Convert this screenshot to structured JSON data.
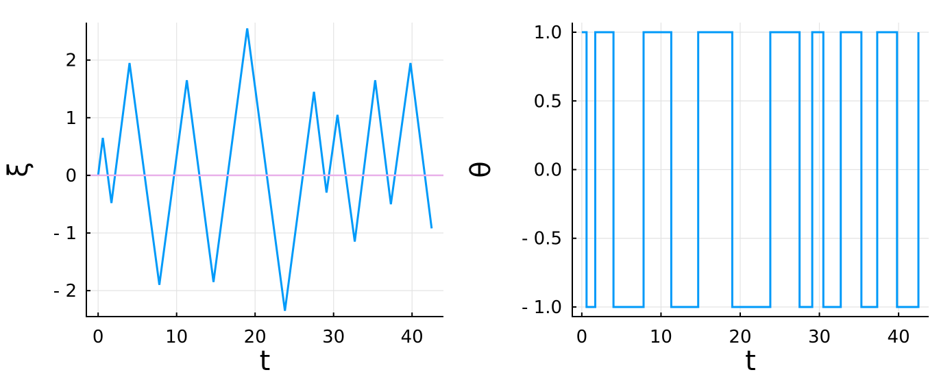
{
  "chart_data": [
    {
      "type": "line",
      "xlabel": "t",
      "ylabel": "ξ",
      "xlim": [
        -1.5,
        44
      ],
      "ylim": [
        -2.45,
        2.65
      ],
      "x_ticks": [
        0,
        10,
        20,
        30,
        40
      ],
      "x_tick_labels": [
        "0",
        "10",
        "20",
        "30",
        "40"
      ],
      "y_ticks": [
        -2,
        -1,
        0,
        1,
        2
      ],
      "y_tick_labels": [
        "- 2",
        "- 1",
        "0",
        "1",
        "2"
      ],
      "grid": true,
      "legend": "none",
      "series": [
        {
          "color": "#009af9",
          "style": "line",
          "x": [
            0,
            0.6,
            1.7,
            4,
            7.8,
            11.3,
            14.7,
            19,
            23.8,
            27.5,
            29.1,
            30.5,
            32.7,
            35.3,
            37.3,
            39.8,
            42.5
          ],
          "y": [
            0,
            0.65,
            -0.48,
            1.95,
            -1.9,
            1.65,
            -1.85,
            2.55,
            -2.35,
            1.45,
            -0.3,
            1.05,
            -1.15,
            1.65,
            -0.5,
            1.95,
            -0.92
          ]
        },
        {
          "color": "#e9b0ea",
          "style": "hline",
          "y": 0
        }
      ]
    },
    {
      "type": "line",
      "xlabel": "t",
      "ylabel": "θ",
      "xlim": [
        -1.2,
        43.8
      ],
      "ylim": [
        -1.07,
        1.07
      ],
      "x_ticks": [
        0,
        10,
        20,
        30,
        40
      ],
      "x_tick_labels": [
        "0",
        "10",
        "20",
        "30",
        "40"
      ],
      "y_ticks": [
        -1,
        -0.5,
        0,
        0.5,
        1
      ],
      "y_tick_labels": [
        "- 1.0",
        "- 0.5",
        "0.0",
        "0.5",
        "1.0"
      ],
      "grid": true,
      "legend": "none",
      "series": [
        {
          "color": "#009af9",
          "style": "step",
          "x": [
            0,
            0.6,
            0.6,
            1.7,
            1.7,
            4,
            4,
            7.8,
            7.8,
            11.3,
            11.3,
            14.7,
            14.7,
            19,
            19,
            23.8,
            23.8,
            27.5,
            27.5,
            29.1,
            29.1,
            30.5,
            30.5,
            32.7,
            32.7,
            35.3,
            35.3,
            37.3,
            37.3,
            39.8,
            39.8,
            42.5,
            42.5
          ],
          "y": [
            1,
            1,
            -1,
            -1,
            1,
            1,
            -1,
            -1,
            1,
            1,
            -1,
            -1,
            1,
            1,
            -1,
            -1,
            1,
            1,
            -1,
            -1,
            1,
            1,
            -1,
            -1,
            1,
            1,
            -1,
            -1,
            1,
            1,
            -1,
            -1,
            1
          ]
        }
      ]
    }
  ]
}
